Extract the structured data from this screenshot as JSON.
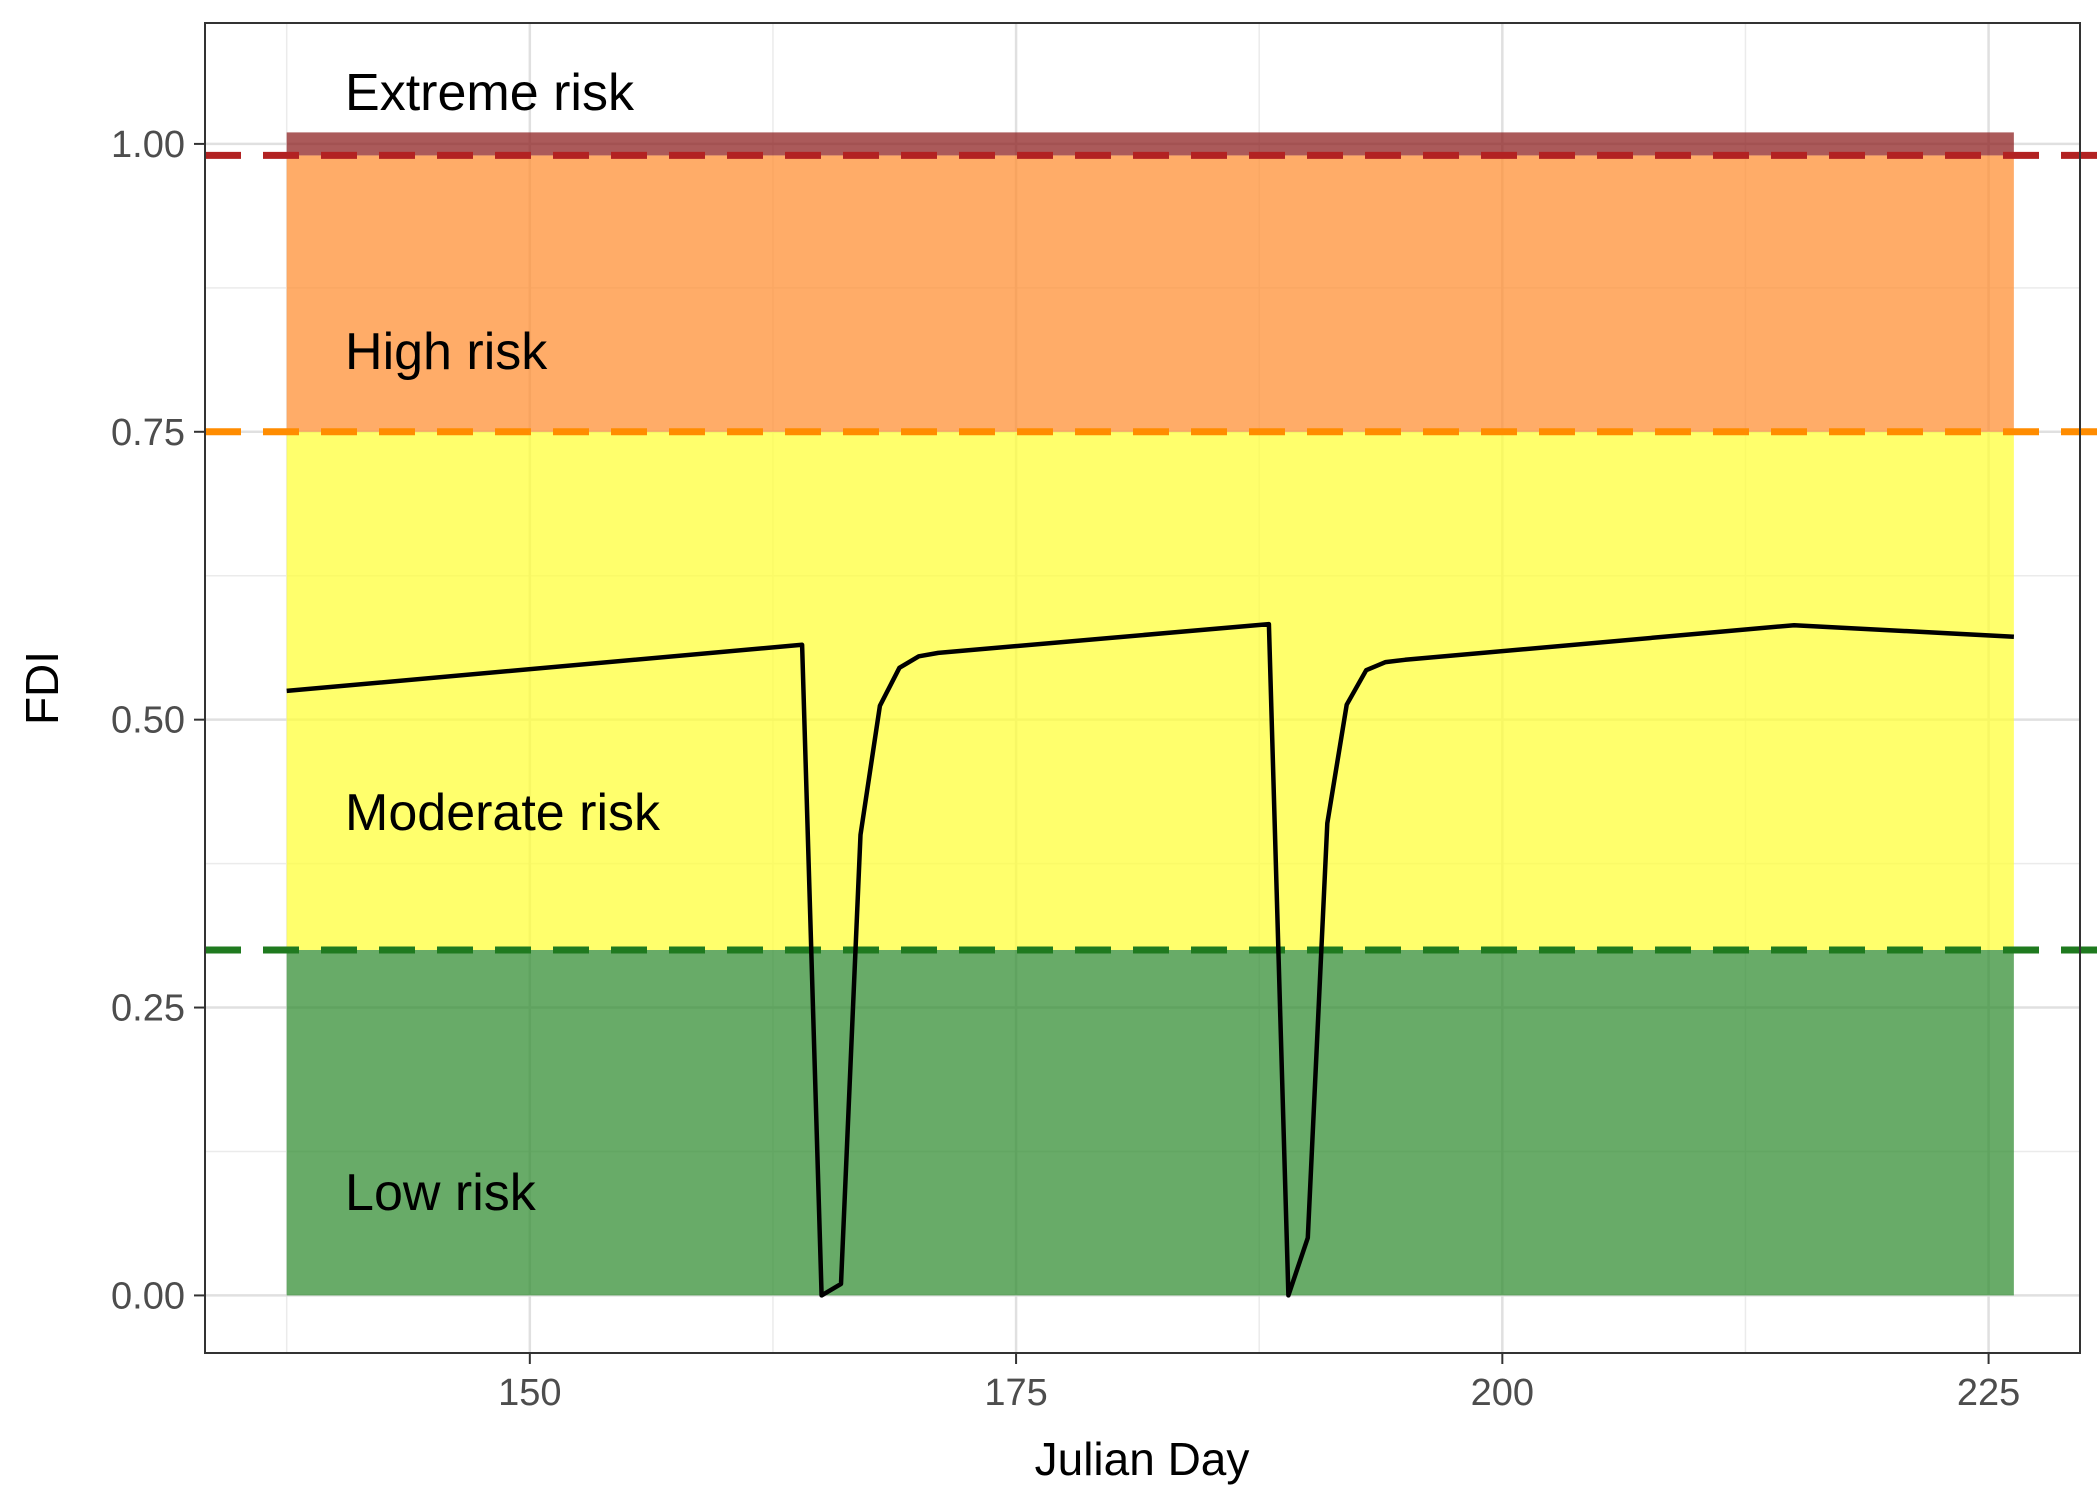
{
  "chart_data": {
    "type": "line",
    "title": "",
    "xlabel": "Julian Day",
    "ylabel": "FDI",
    "xlim": [
      133.3,
      229.7
    ],
    "ylim": [
      -0.05,
      1.105
    ],
    "x_ticks": [
      150,
      175,
      200,
      225
    ],
    "y_ticks": [
      0.0,
      0.25,
      0.5,
      0.75,
      1.0
    ],
    "x_tick_labels": [
      "150",
      "175",
      "200",
      "225"
    ],
    "y_tick_labels": [
      "0.00",
      "0.25",
      "0.50",
      "0.75",
      "1.00"
    ],
    "grid": true,
    "legend": "none",
    "bands": [
      {
        "name": "Low risk",
        "y0": 0.0,
        "y1": 0.3,
        "x0": 137.5,
        "x1": 226.3,
        "color": "#2E8B2E",
        "label_y": 0.09
      },
      {
        "name": "Moderate risk",
        "y0": 0.3,
        "y1": 0.75,
        "x0": 137.5,
        "x1": 226.3,
        "color": "#FFFF33",
        "label_y": 0.42
      },
      {
        "name": "High risk",
        "y0": 0.75,
        "y1": 0.99,
        "x0": 137.5,
        "x1": 226.3,
        "color": "#FF8C2E",
        "label_y": 0.82
      },
      {
        "name": "Extreme risk",
        "y0": 0.99,
        "y1": 1.01,
        "x0": 137.5,
        "x1": 226.3,
        "color": "#8B1A1A",
        "label_y": 1.045
      }
    ],
    "band_label_x": 140.5,
    "thresholds": [
      {
        "y": 0.3,
        "color": "#1F7A1F"
      },
      {
        "y": 0.75,
        "color": "#FF8C00"
      },
      {
        "y": 0.99,
        "color": "#B22222"
      }
    ],
    "series": [
      {
        "color": "#000000",
        "x": [
          137.5,
          164.0,
          165.0,
          166.0,
          167.0,
          168.0,
          169.0,
          170.0,
          171.0,
          188.0,
          189.0,
          190.0,
          191.0,
          192.0,
          193.0,
          194.0,
          195.0,
          215.0,
          226.3
        ],
        "y": [
          0.525,
          0.565,
          0.0,
          0.01,
          0.4,
          0.512,
          0.545,
          0.555,
          0.558,
          0.583,
          0.0,
          0.05,
          0.41,
          0.513,
          0.543,
          0.55,
          0.552,
          0.582,
          0.572
        ]
      }
    ]
  }
}
